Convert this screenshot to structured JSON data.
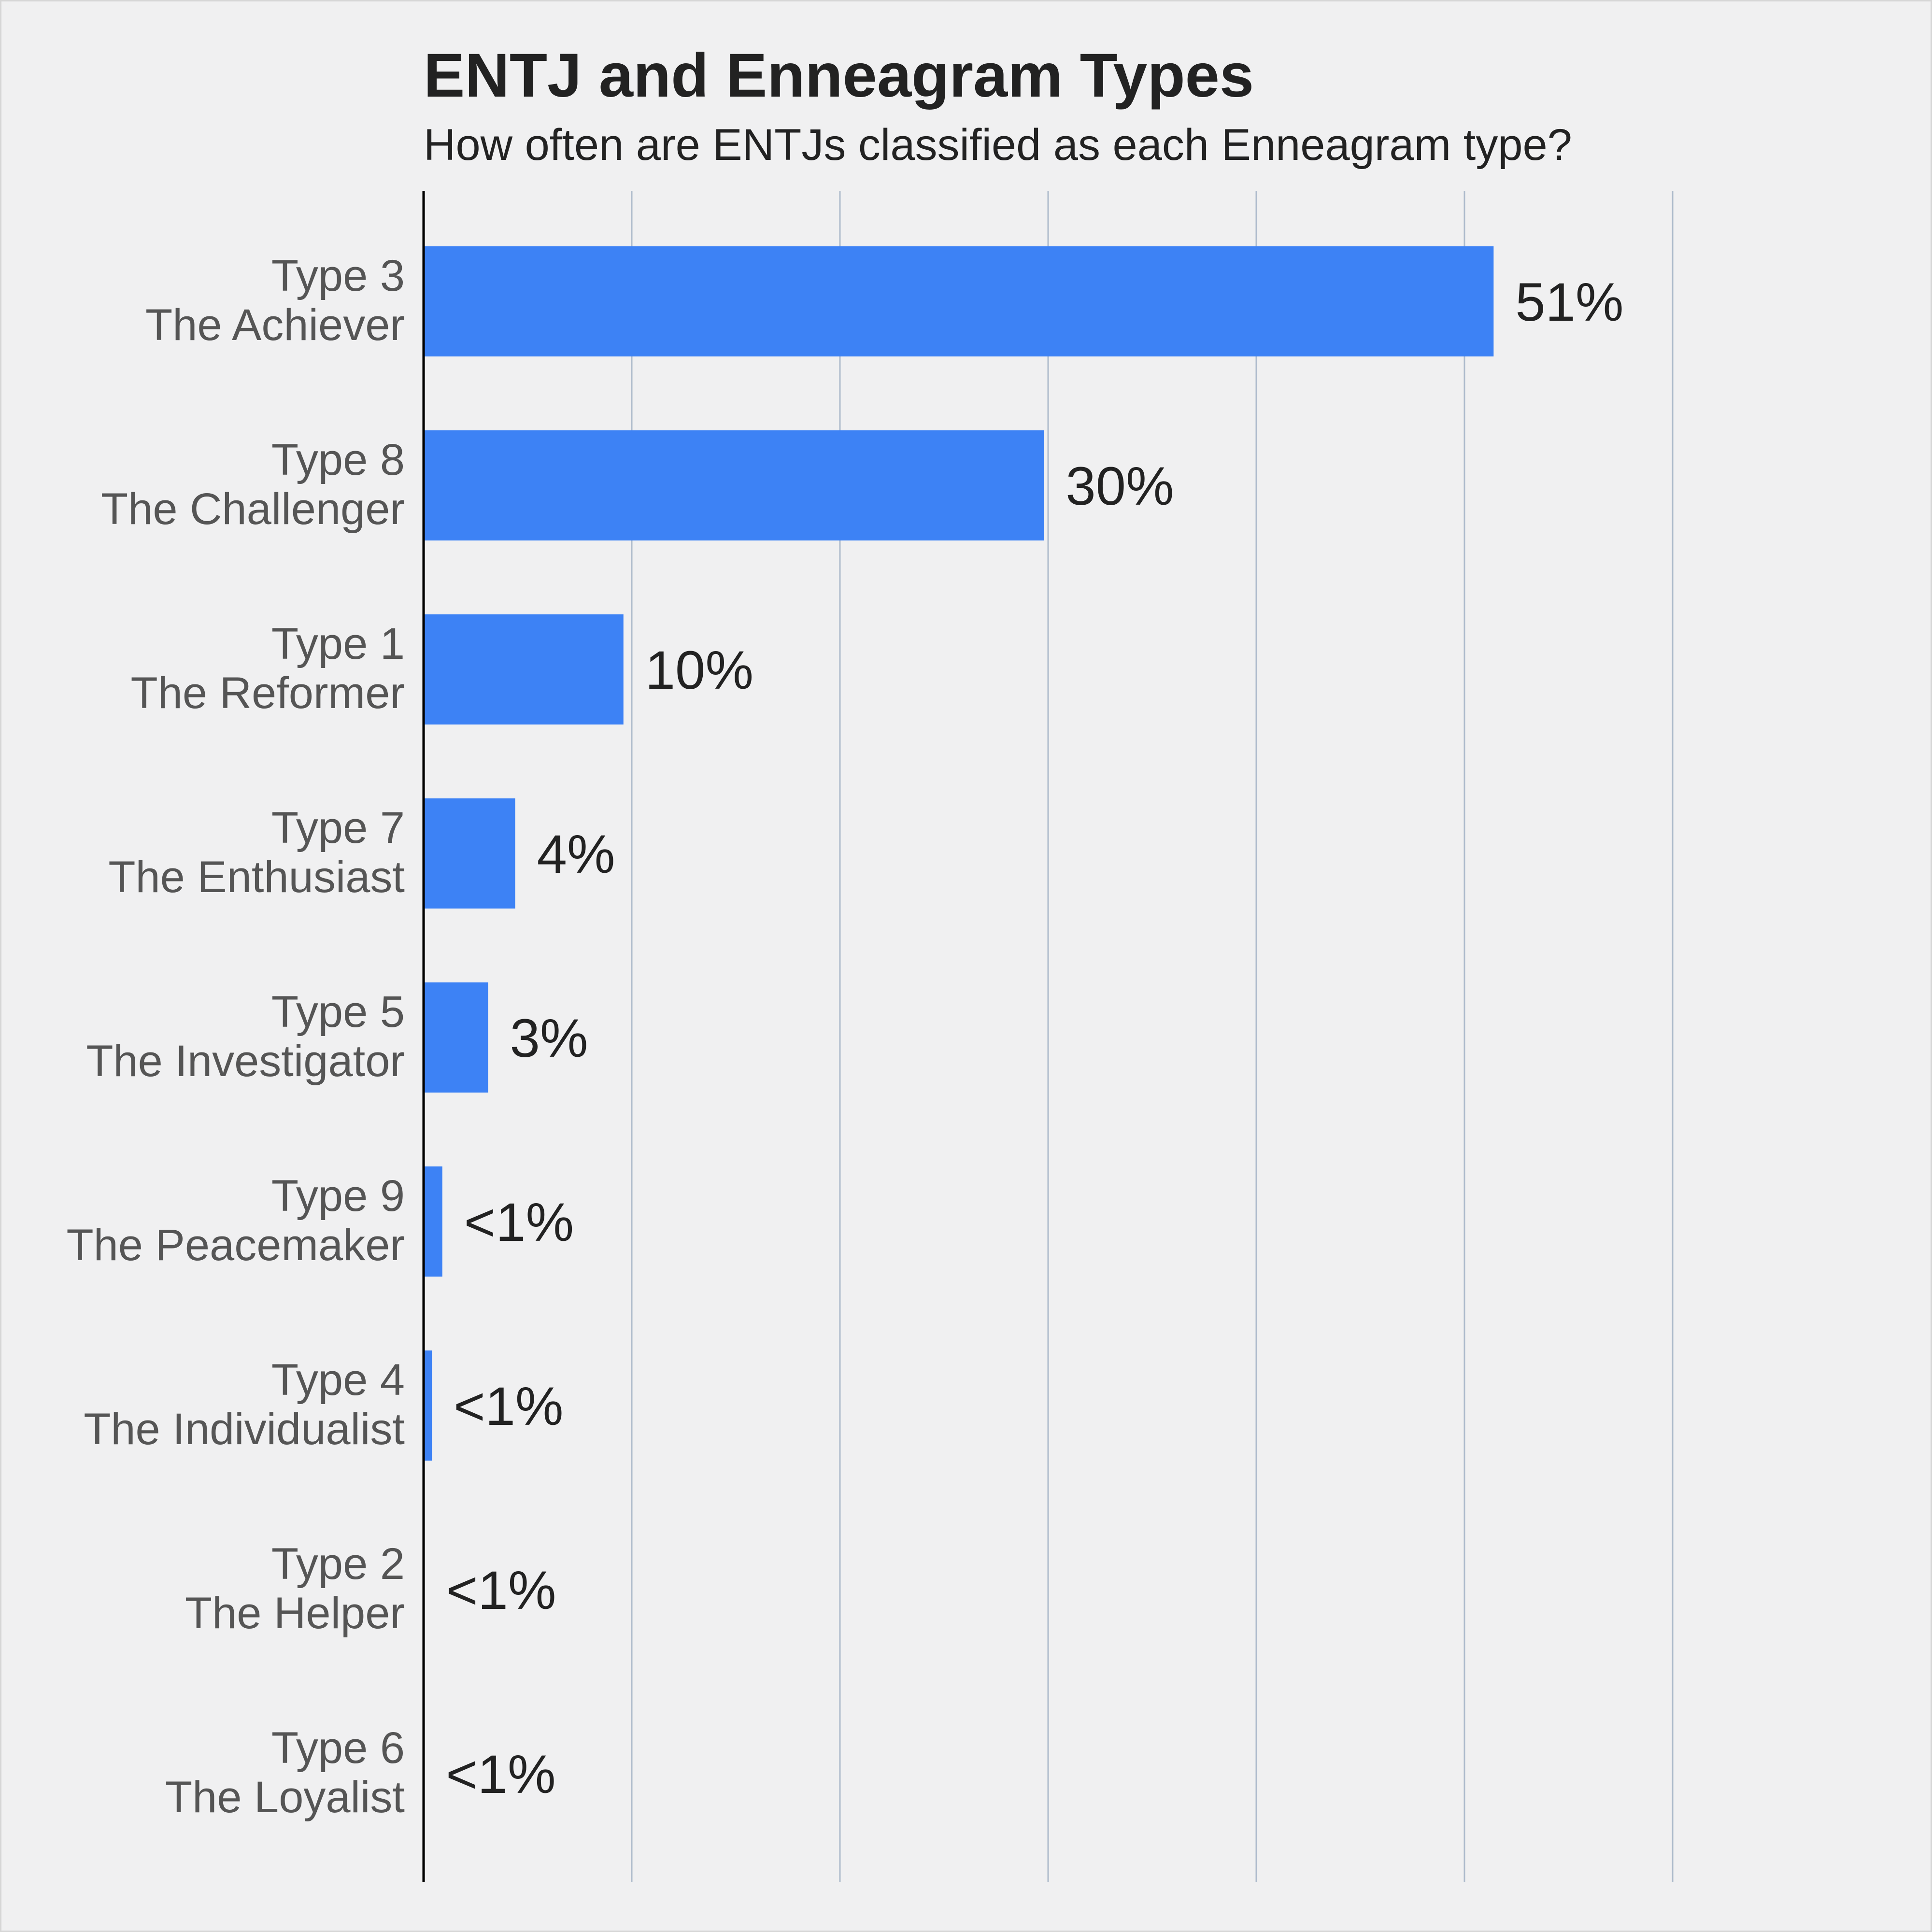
{
  "chart_data": {
    "type": "bar",
    "orientation": "horizontal",
    "title": "ENTJ and Enneagram Types",
    "subtitle": "How often are ENTJs classified as each Enneagram type?",
    "xlabel": "",
    "ylabel": "",
    "xlim": [
      0,
      60
    ],
    "grid": "vertical",
    "legend": "none",
    "bar_color": "#3d82f5",
    "categories": [
      {
        "type": "Type 3",
        "name": "The Achiever"
      },
      {
        "type": "Type 8",
        "name": "The Challenger"
      },
      {
        "type": "Type 1",
        "name": "The Reformer"
      },
      {
        "type": "Type 7",
        "name": "The Enthusiast"
      },
      {
        "type": "Type 5",
        "name": "The Investigator"
      },
      {
        "type": "Type 9",
        "name": "The Peacemaker"
      },
      {
        "type": "Type 4",
        "name": "The Individualist"
      },
      {
        "type": "Type 2",
        "name": "The Helper"
      },
      {
        "type": "Type 6",
        "name": "The Loyalist"
      }
    ],
    "values": [
      51.4,
      29.8,
      9.6,
      4.4,
      3.1,
      0.9,
      0.4,
      0.05,
      0.03
    ],
    "value_labels": [
      "51%",
      "30%",
      "10%",
      "4%",
      "3%",
      "<1%",
      "<1%",
      "<1%",
      "<1%"
    ]
  }
}
